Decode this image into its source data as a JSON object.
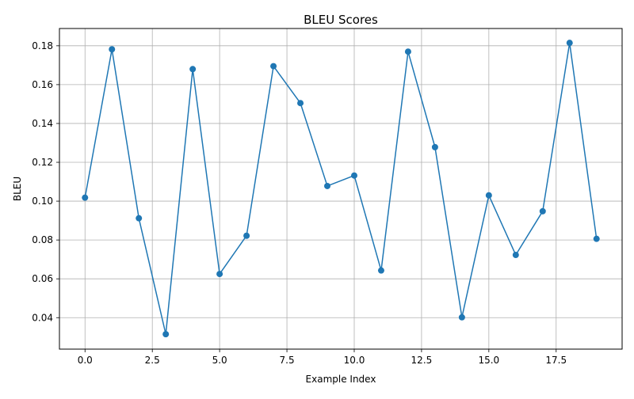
{
  "chart_data": {
    "type": "line",
    "title": "BLEU Scores",
    "xlabel": "Example Index",
    "ylabel": "BLEU",
    "xlim": [
      -0.95,
      19.95
    ],
    "ylim": [
      0.0238,
      0.1889
    ],
    "xticks": [
      0.0,
      2.5,
      5.0,
      7.5,
      10.0,
      12.5,
      15.0,
      17.5
    ],
    "xtick_labels": [
      "0.0",
      "2.5",
      "5.0",
      "7.5",
      "10.0",
      "12.5",
      "15.0",
      "17.5"
    ],
    "yticks": [
      0.04,
      0.06,
      0.08,
      0.1,
      0.12,
      0.14,
      0.16,
      0.18
    ],
    "ytick_labels": [
      "0.04",
      "0.06",
      "0.08",
      "0.10",
      "0.12",
      "0.14",
      "0.16",
      "0.18"
    ],
    "grid": true,
    "legend": "none",
    "series": [
      {
        "color": "#1f77b4",
        "marker": "circle",
        "x": [
          0,
          1,
          2,
          3,
          4,
          5,
          6,
          7,
          8,
          9,
          10,
          11,
          12,
          13,
          14,
          15,
          16,
          17,
          18,
          19
        ],
        "y": [
          0.1018,
          0.1782,
          0.0912,
          0.0315,
          0.168,
          0.0625,
          0.0822,
          0.1695,
          0.1505,
          0.1078,
          0.1132,
          0.0643,
          0.177,
          0.1278,
          0.0402,
          0.103,
          0.0723,
          0.0948,
          0.1815,
          0.0806
        ]
      }
    ]
  }
}
